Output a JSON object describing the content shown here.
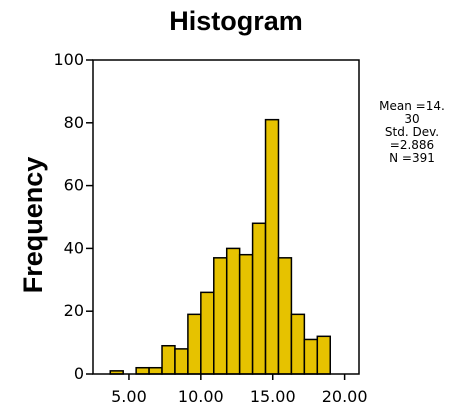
{
  "chart_data": {
    "type": "bar",
    "title": "Histogram",
    "xlabel": "",
    "ylabel": "Frequency",
    "xlim": [
      2.5,
      21.0
    ],
    "ylim": [
      0,
      100
    ],
    "xticks": [
      5,
      10,
      15,
      20
    ],
    "xtick_labels": [
      "5.00",
      "10.00",
      "15.00",
      "20.00"
    ],
    "yticks": [
      0,
      20,
      40,
      60,
      80,
      100
    ],
    "ytick_labels": [
      "0",
      "20",
      "40",
      "60",
      "80",
      "100"
    ],
    "grid": false,
    "bin_width": 0.9,
    "bins": [
      {
        "start": 3.7,
        "value": 1
      },
      {
        "start": 4.6,
        "value": 0
      },
      {
        "start": 5.5,
        "value": 2
      },
      {
        "start": 6.4,
        "value": 2
      },
      {
        "start": 7.3,
        "value": 9
      },
      {
        "start": 8.2,
        "value": 8
      },
      {
        "start": 9.1,
        "value": 19
      },
      {
        "start": 10.0,
        "value": 26
      },
      {
        "start": 10.9,
        "value": 37
      },
      {
        "start": 11.8,
        "value": 40
      },
      {
        "start": 12.7,
        "value": 38
      },
      {
        "start": 13.6,
        "value": 48
      },
      {
        "start": 14.5,
        "value": 81
      },
      {
        "start": 15.4,
        "value": 37
      },
      {
        "start": 16.3,
        "value": 19
      },
      {
        "start": 17.2,
        "value": 11
      },
      {
        "start": 18.1,
        "value": 12
      }
    ],
    "stats": [
      "Mean =14.",
      "30",
      "Std. Dev.",
      "=2.886",
      "N =391"
    ]
  },
  "colors": {
    "bar_fill": "#e6c200",
    "bar_stroke": "#000000"
  }
}
